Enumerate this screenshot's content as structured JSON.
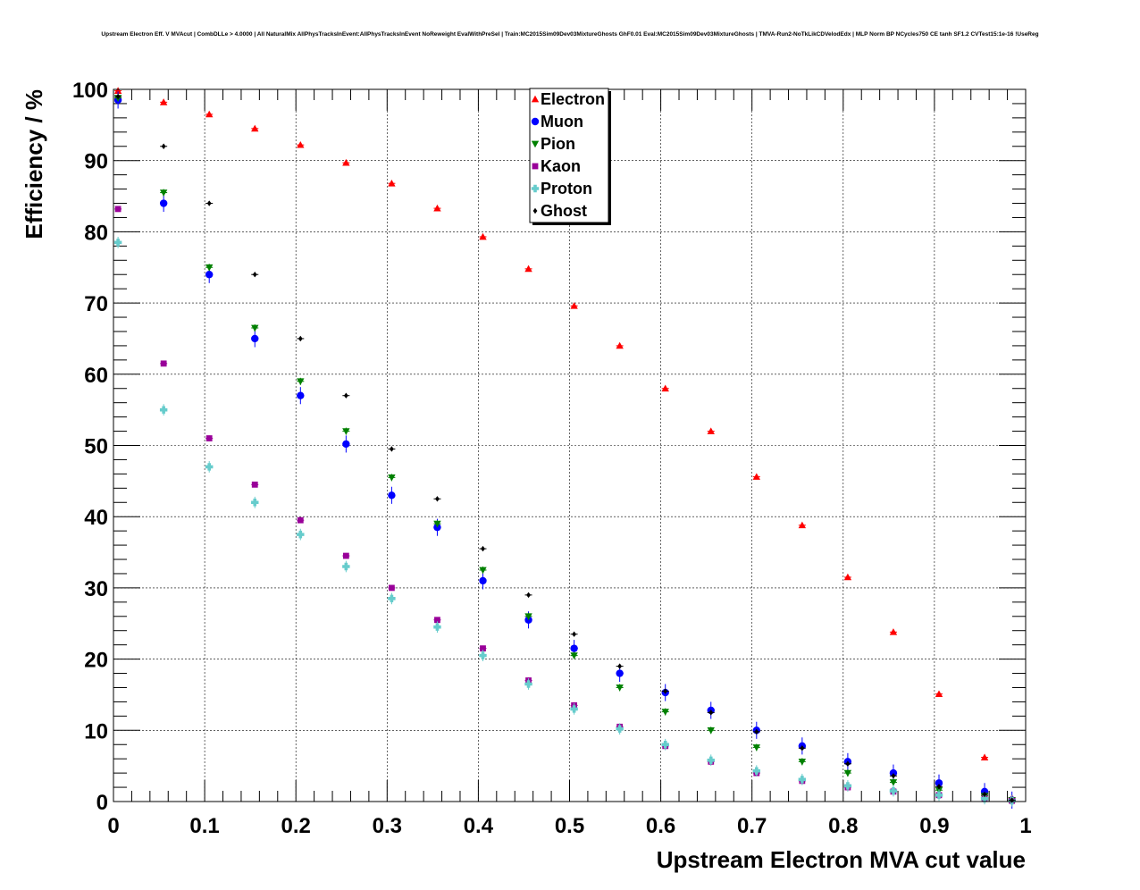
{
  "title": "Upstream Electron Eff. V MVAcut | CombDLLe > 4.0000 | All NaturalMix AllPhysTracksInEvent:AllPhysTracksInEvent NoReweight EvalWithPreSel | Train:MC2015Sim09Dev03MixtureGhosts GhF0.01 Eval:MC2015Sim09Dev03MixtureGhosts | TMVA-Run2-NoTkLikCDVelodEdx | MLP Norm BP NCycles750 CE tanh SF1.2 CVTest15:1e-16 !UseReg",
  "chart_data": {
    "type": "scatter",
    "title": "Upstream Electron Eff. V MVAcut | CombDLLe > 4.0000 | All NaturalMix AllPhysTracksInEvent:AllPhysTracksInEvent NoReweight EvalWithPreSel | Train:MC2015Sim09Dev03MixtureGhosts GhF0.01 Eval:MC2015Sim09Dev03MixtureGhosts | TMVA-Run2-NoTkLikCDVelodEdx | MLP Norm BP NCycles750 CE tanh SF1.2 CVTest15:1e-16 !UseReg",
    "xlabel": "Upstream Electron MVA cut value",
    "ylabel": "Efficiency / %",
    "xlim": [
      0,
      1
    ],
    "ylim": [
      0,
      100
    ],
    "grid": true,
    "legend_position": "top-center",
    "x_ticks": [
      "0",
      "0.1",
      "0.2",
      "0.3",
      "0.4",
      "0.5",
      "0.6",
      "0.7",
      "0.8",
      "0.9",
      "1"
    ],
    "y_ticks": [
      "0",
      "10",
      "20",
      "30",
      "40",
      "50",
      "60",
      "70",
      "80",
      "90",
      "100"
    ],
    "x_sampled": [
      0.005,
      0.055,
      0.105,
      0.155,
      0.205,
      0.255,
      0.305,
      0.355,
      0.405,
      0.455,
      0.505,
      0.555,
      0.605,
      0.655,
      0.705,
      0.755,
      0.805,
      0.855,
      0.905,
      0.955,
      0.985
    ],
    "series": [
      {
        "name": "Electron",
        "color": "#ff0000",
        "marker": "triangle-up",
        "err": 0.2,
        "values": [
          99.8,
          98.2,
          96.5,
          94.5,
          92.2,
          89.7,
          86.8,
          83.3,
          79.3,
          74.8,
          69.6,
          64.0,
          58.0,
          52.0,
          45.6,
          38.8,
          31.5,
          23.8,
          15.1,
          6.2,
          0.5
        ]
      },
      {
        "name": "Muon",
        "color": "#0000ff",
        "marker": "circle",
        "err": 1.2,
        "values": [
          98.5,
          84.0,
          74.0,
          65.0,
          57.0,
          50.2,
          43.0,
          38.5,
          31.0,
          25.5,
          21.5,
          18.0,
          15.3,
          12.8,
          10.0,
          7.8,
          5.6,
          4.0,
          2.6,
          1.4,
          0.2
        ]
      },
      {
        "name": "Pion",
        "color": "#008000",
        "marker": "triangle-down",
        "err": 0.5,
        "values": [
          98.8,
          85.5,
          75.0,
          66.5,
          59.0,
          52.0,
          45.5,
          39.0,
          32.5,
          26.0,
          20.5,
          16.0,
          12.6,
          10.0,
          7.6,
          5.6,
          4.0,
          2.7,
          1.6,
          0.8,
          0.2
        ]
      },
      {
        "name": "Kaon",
        "color": "#990099",
        "marker": "square",
        "err": 0.4,
        "values": [
          83.2,
          61.5,
          51.0,
          44.5,
          39.5,
          34.5,
          30.0,
          25.5,
          21.5,
          17.0,
          13.5,
          10.5,
          7.8,
          5.6,
          4.0,
          2.9,
          2.0,
          1.4,
          0.9,
          0.4,
          0.1
        ]
      },
      {
        "name": "Proton",
        "color": "#66cccc",
        "marker": "cross",
        "err": 0.8,
        "values": [
          78.5,
          55.0,
          47.0,
          42.0,
          37.5,
          33.0,
          28.5,
          24.5,
          20.5,
          16.5,
          13.0,
          10.2,
          8.0,
          5.8,
          4.3,
          3.1,
          2.2,
          1.5,
          0.9,
          0.4,
          0.1
        ]
      },
      {
        "name": "Ghost",
        "color": "#000000",
        "marker": "diamond",
        "err": 0.3,
        "values": [
          99.0,
          92.0,
          84.0,
          74.0,
          65.0,
          57.0,
          49.5,
          42.5,
          35.5,
          29.0,
          23.5,
          19.0,
          15.5,
          12.5,
          9.8,
          7.5,
          5.3,
          3.6,
          2.1,
          1.0,
          0.2
        ]
      }
    ]
  }
}
